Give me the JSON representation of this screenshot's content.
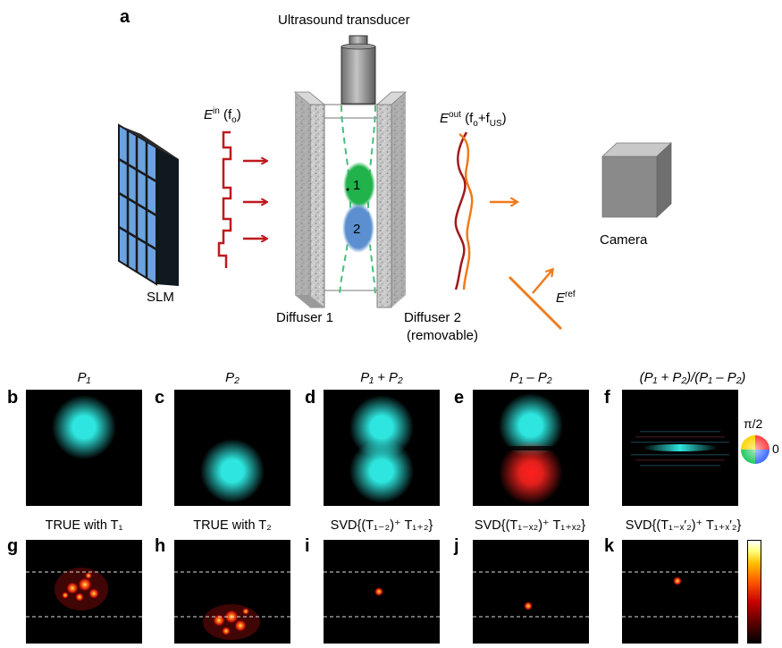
{
  "panel_a": {
    "letter": "a",
    "transducer_label": "Ultrasound transducer",
    "slm_label": "SLM",
    "camera_label": "Camera",
    "diffuser1_label": "Diffuser 1",
    "diffuser2_label": "Diffuser 2",
    "diffuser2_sub": "(removable)",
    "focus1": "1",
    "focus2": "2",
    "ein": {
      "base": "E",
      "sup": "in",
      "paren": "(f",
      "sub": "o",
      "close": ")"
    },
    "eout": {
      "base": "E",
      "sup": "out",
      "paren": "(f",
      "sub1": "o",
      "plus": "+f",
      "sub2": "US",
      "close": ")"
    },
    "eref": {
      "base": "E",
      "sup": "ref"
    }
  },
  "panels_row1": [
    {
      "letter": "b",
      "title": "P₁"
    },
    {
      "letter": "c",
      "title": "P₂"
    },
    {
      "letter": "d",
      "title": "P₁ + P₂"
    },
    {
      "letter": "e",
      "title": "P₁ – P₂"
    },
    {
      "letter": "f",
      "title": "(P₁ + P₂)/(P₁ – P₂)"
    }
  ],
  "colorwheel": {
    "top": "π/2",
    "right": "0"
  },
  "panels_row2": [
    {
      "letter": "g",
      "title": "TRUE with T₁"
    },
    {
      "letter": "h",
      "title": "TRUE with T₂"
    },
    {
      "letter": "i",
      "title": "SVD{(T₁₋₂)⁺ T₁₊₂}"
    },
    {
      "letter": "j",
      "title": "SVD{(T₁₋ₓ₂)⁺ T₁₊ₓ₂}"
    },
    {
      "letter": "k",
      "title": "SVD{(T₁₋ₓ′₂)⁺ T₁₊ₓ′₂}"
    }
  ],
  "colors": {
    "cyan": "#2ee6df",
    "red": "#e4201c",
    "green": "#21b24b",
    "blue": "#5b8fd0",
    "arrow_in": "#c0191d",
    "arrow_out": "#f07a1a",
    "slm_blue": "#6aa3e0"
  }
}
